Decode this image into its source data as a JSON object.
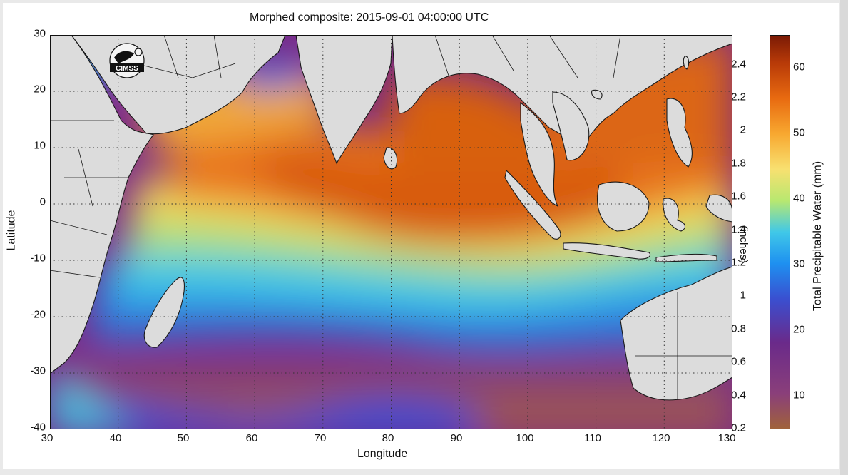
{
  "chart_data": {
    "type": "heatmap",
    "title": "Morphed composite: 2015-09-01 04:00:00 UTC",
    "xlabel": "Longitude",
    "ylabel": "Latitude",
    "xlim": [
      30,
      130
    ],
    "ylim": [
      -40,
      30
    ],
    "x_ticks": [
      "30",
      "40",
      "50",
      "60",
      "70",
      "80",
      "90",
      "100",
      "110",
      "120",
      "130"
    ],
    "y_ticks": [
      "30",
      "20",
      "10",
      "0",
      "-10",
      "-20",
      "-30",
      "-40"
    ],
    "grid": true,
    "colorbar": {
      "label_mm": "Total Precipitable Water (mm)",
      "label_inches": "(inches)",
      "range_mm": [
        5,
        65
      ],
      "inch_ticks": [
        "2.4",
        "2.2",
        "2",
        "1.8",
        "1.6",
        "1.4",
        "1.2",
        "1",
        "0.8",
        "0.6",
        "0.4",
        "0.2"
      ],
      "mm_ticks": [
        "60",
        "50",
        "40",
        "30",
        "20",
        "10"
      ],
      "colors": [
        "#a0623a",
        "#8a3f7a",
        "#6a2a8a",
        "#3a4fd0",
        "#1e90f0",
        "#40c8e8",
        "#b8e870",
        "#f8e070",
        "#f8a830",
        "#e86a10",
        "#b83a08",
        "#7a1a05"
      ]
    }
  },
  "logo": {
    "text": "CIMSS"
  },
  "colors": {
    "land": "#dcdcdc",
    "border": "#1a1a1a",
    "moist": "#e06810",
    "mid": "#38b8e8",
    "dry": "#7a2a88"
  }
}
